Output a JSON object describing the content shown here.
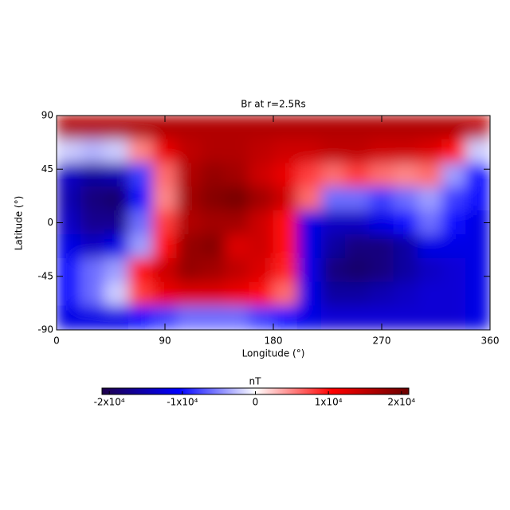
{
  "chart_data": {
    "type": "heatmap",
    "title": "Br at r=2.5Rs",
    "x_label": "Longitude (°)",
    "y_label": "Latitude (°)",
    "x": [
      10,
      30,
      50,
      70,
      90,
      110,
      130,
      150,
      170,
      190,
      210,
      230,
      250,
      270,
      290,
      310,
      330,
      350
    ],
    "y": [
      80,
      60,
      40,
      20,
      0,
      -20,
      -40,
      -60,
      -80
    ],
    "z": [
      [
        16000,
        16000,
        16000,
        16000,
        16000,
        16000,
        16000,
        16000,
        16000,
        16000,
        16000,
        16000,
        16000,
        16000,
        16000,
        16000,
        16000,
        15000
      ],
      [
        -2000,
        -3000,
        -2000,
        5000,
        12000,
        15000,
        16000,
        16000,
        15000,
        14000,
        14000,
        15000,
        15000,
        14000,
        14000,
        13000,
        10000,
        -2000
      ],
      [
        -14000,
        -16000,
        -15000,
        -8000,
        6000,
        16000,
        18000,
        17000,
        14000,
        12000,
        8000,
        6000,
        8000,
        6000,
        5000,
        6000,
        -4000,
        -10000
      ],
      [
        -15000,
        -18000,
        -19000,
        -10000,
        5000,
        17000,
        19000,
        20000,
        17000,
        14000,
        6000,
        -6000,
        -6000,
        -8000,
        -6000,
        -4000,
        -8000,
        -10000
      ],
      [
        -14000,
        -17000,
        -17000,
        -6000,
        8000,
        16000,
        17000,
        17000,
        14000,
        10000,
        -12000,
        -14000,
        -14000,
        -12000,
        -10000,
        -6000,
        -10000,
        -12000
      ],
      [
        -12000,
        -14000,
        -12000,
        -4000,
        10000,
        18000,
        19000,
        13000,
        14000,
        10000,
        -12000,
        -16000,
        -18000,
        -18000,
        -16000,
        -12000,
        -12000,
        -12000
      ],
      [
        -10000,
        -6000,
        -4000,
        10000,
        14000,
        18000,
        17000,
        15000,
        13000,
        9000,
        -12000,
        -18000,
        -19000,
        -18000,
        -16000,
        -14000,
        -13000,
        -12000
      ],
      [
        -10000,
        -6000,
        -2000,
        8000,
        12000,
        13000,
        13000,
        12000,
        10000,
        6000,
        -12000,
        -16000,
        -16000,
        -15000,
        -14000,
        -13000,
        -13000,
        -12000
      ],
      [
        -12000,
        -12000,
        -12000,
        -10000,
        -8000,
        -6000,
        -6000,
        -6000,
        -8000,
        -10000,
        -12000,
        -13000,
        -13000,
        -13000,
        -13000,
        -13000,
        -13000,
        -12000
      ]
    ],
    "xlim": [
      0,
      360
    ],
    "xticks": [
      0,
      90,
      180,
      270,
      360
    ],
    "ylim": [
      -90,
      90
    ],
    "yticks": [
      -90,
      -45,
      0,
      45,
      90
    ],
    "colorbar_label": "nT",
    "zlim": [
      -21000,
      21000
    ],
    "zticks": [
      {
        "value": -20000,
        "label": "-2x10⁴"
      },
      {
        "value": -10000,
        "label": "-1x10⁴"
      },
      0,
      {
        "value": 10000,
        "label": "1x10⁴"
      },
      {
        "value": 20000,
        "label": "2x10⁴"
      }
    ],
    "colormap": [
      "#1f004a",
      "#0000ff",
      "#ffffff",
      "#ff0000",
      "#6a0000"
    ]
  }
}
